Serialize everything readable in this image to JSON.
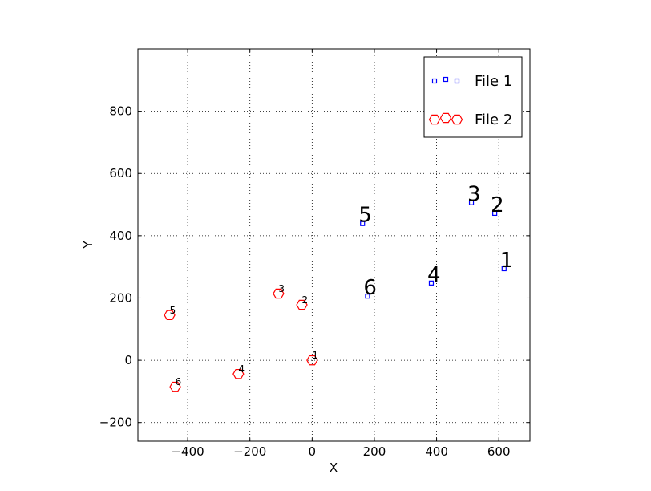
{
  "chart_data": {
    "type": "scatter",
    "xlabel": "X",
    "ylabel": "Y",
    "xlim": [
      -560,
      700
    ],
    "ylim": [
      -260,
      1000
    ],
    "xticks": [
      {
        "value": -400,
        "label": "−400"
      },
      {
        "value": -200,
        "label": "−200"
      },
      0,
      200,
      400,
      600
    ],
    "yticks": [
      {
        "value": -200,
        "label": "−200"
      },
      0,
      200,
      400,
      600,
      800
    ],
    "grid": true,
    "legend": "upper right",
    "series": [
      {
        "name": "File 1",
        "color": "#0000ff",
        "marker": "square",
        "x": [
          617,
          587,
          512,
          383,
          162,
          178
        ],
        "values": [
          294,
          472,
          506,
          248,
          439,
          206
        ],
        "point_labels": [
          "1",
          "2",
          "3",
          "4",
          "5",
          "6"
        ]
      },
      {
        "name": "File 2",
        "color": "#ff0000",
        "marker": "hexagon",
        "x": [
          0,
          -33,
          -108,
          -237,
          -458,
          -440
        ],
        "values": [
          0,
          178,
          214,
          -44,
          145,
          -85
        ],
        "point_labels": [
          "1",
          "2",
          "3",
          "4",
          "5",
          "6"
        ]
      }
    ]
  }
}
